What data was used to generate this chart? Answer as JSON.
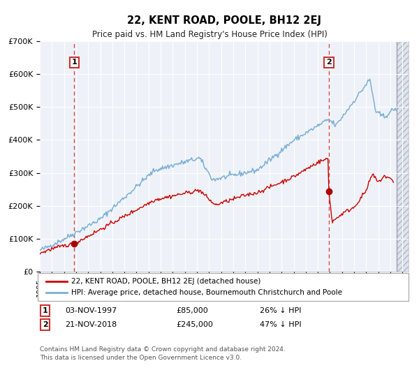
{
  "title": "22, KENT ROAD, POOLE, BH12 2EJ",
  "subtitle": "Price paid vs. HM Land Registry's House Price Index (HPI)",
  "legend_line1": "22, KENT ROAD, POOLE, BH12 2EJ (detached house)",
  "legend_line2": "HPI: Average price, detached house, Bournemouth Christchurch and Poole",
  "annotation1_date": "03-NOV-1997",
  "annotation1_price": "£85,000",
  "annotation1_hpi": "26% ↓ HPI",
  "annotation2_date": "21-NOV-2018",
  "annotation2_price": "£245,000",
  "annotation2_hpi": "47% ↓ HPI",
  "footer": "Contains HM Land Registry data © Crown copyright and database right 2024.\nThis data is licensed under the Open Government Licence v3.0.",
  "hpi_color": "#7bafd4",
  "price_color": "#cc0000",
  "marker_color": "#aa0000",
  "dashed_line_color": "#cc3333",
  "bg_color": "#eef2f8",
  "ylim_max": 700000,
  "ylim_min": 0,
  "sale1_year": 1997.84,
  "sale1_price": 85000,
  "sale2_year": 2018.89,
  "sale2_price": 245000,
  "xmin": 1995.0,
  "xmax": 2025.5
}
